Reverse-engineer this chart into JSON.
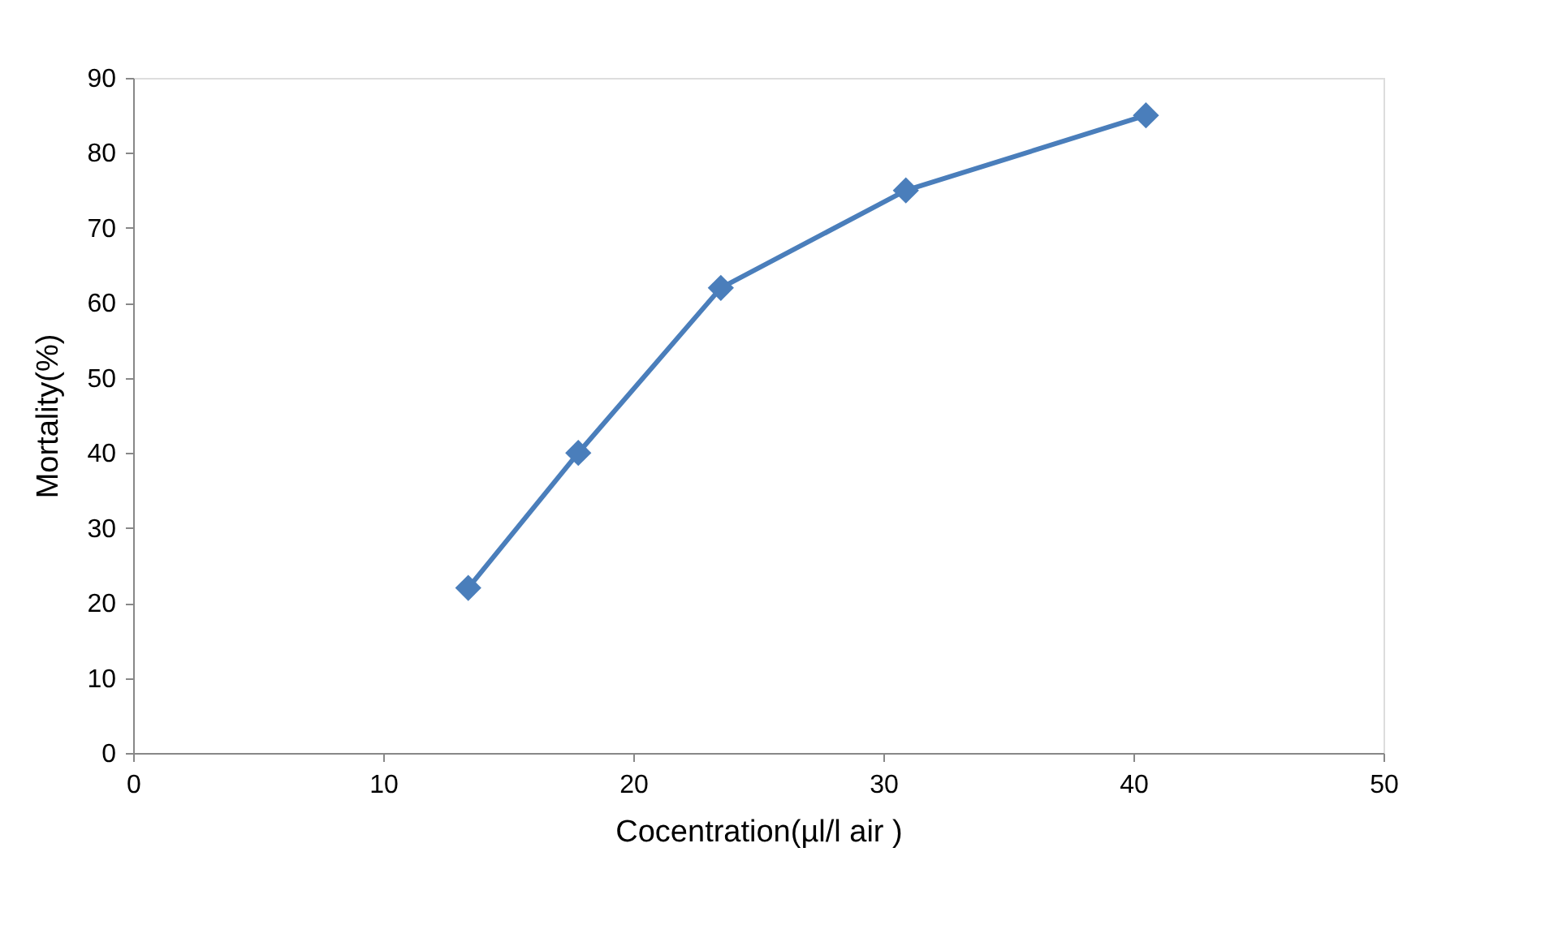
{
  "chart_data": {
    "type": "line",
    "xlabel": "Cocentration(µl/l air )",
    "ylabel": "Mortality(%)",
    "x": [
      13.4,
      17.8,
      23.5,
      30.9,
      40.5
    ],
    "series": [
      {
        "color": "#4a7ebb",
        "values": [
          22,
          40,
          62,
          75,
          85
        ]
      }
    ],
    "xlim": [
      0,
      50
    ],
    "xticks": [
      0,
      10,
      20,
      30,
      40,
      50
    ],
    "ylim": [
      0,
      90
    ],
    "yticks": [
      0,
      10,
      20,
      30,
      40,
      50,
      60,
      70,
      80,
      90
    ],
    "grid": false,
    "marker": "diamond",
    "line_style": "solid"
  }
}
